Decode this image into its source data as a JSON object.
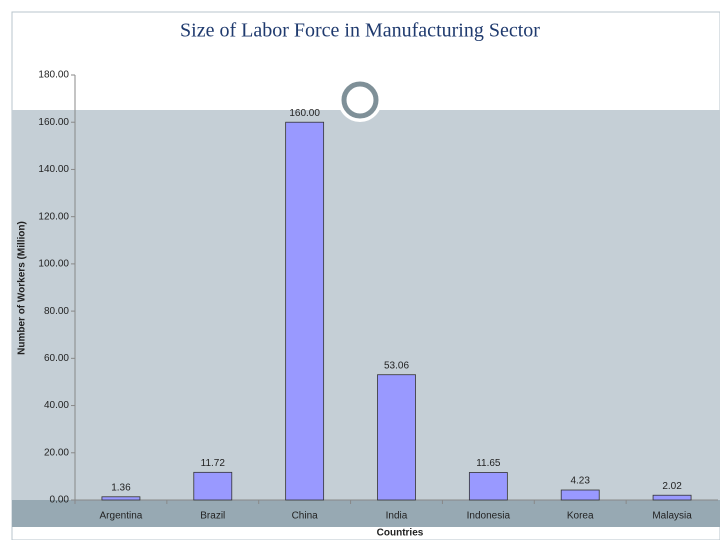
{
  "chart_data": {
    "type": "bar",
    "title": "Size of Labor Force in Manufacturing Sector",
    "x_label": "Countries",
    "y_label": "Number of Workers (Million)",
    "categories": [
      "Argentina",
      "Brazil",
      "China",
      "India",
      "Indonesia",
      "Korea",
      "Malaysia"
    ],
    "values": [
      1.36,
      11.72,
      160,
      53.06,
      11.65,
      4.23,
      2.02
    ],
    "value_labels": [
      "1.36",
      "11.72",
      "160.00",
      "53.06",
      "11.65",
      "4.23",
      "2.02"
    ],
    "color": "#9999ff",
    "ylim": [
      0,
      180
    ],
    "yticks": [
      {
        "value": 0,
        "label": "0.00"
      },
      {
        "value": 20,
        "label": "20.00"
      },
      {
        "value": 40,
        "label": "40.00"
      },
      {
        "value": 60,
        "label": "60.00"
      },
      {
        "value": 80,
        "label": "80.00"
      },
      {
        "value": 100,
        "label": "100.00"
      },
      {
        "value": 120,
        "label": "120.00"
      },
      {
        "value": 140,
        "label": "140.00"
      },
      {
        "value": 160,
        "label": "160.00"
      },
      {
        "value": 180,
        "label": "180.00"
      }
    ]
  }
}
